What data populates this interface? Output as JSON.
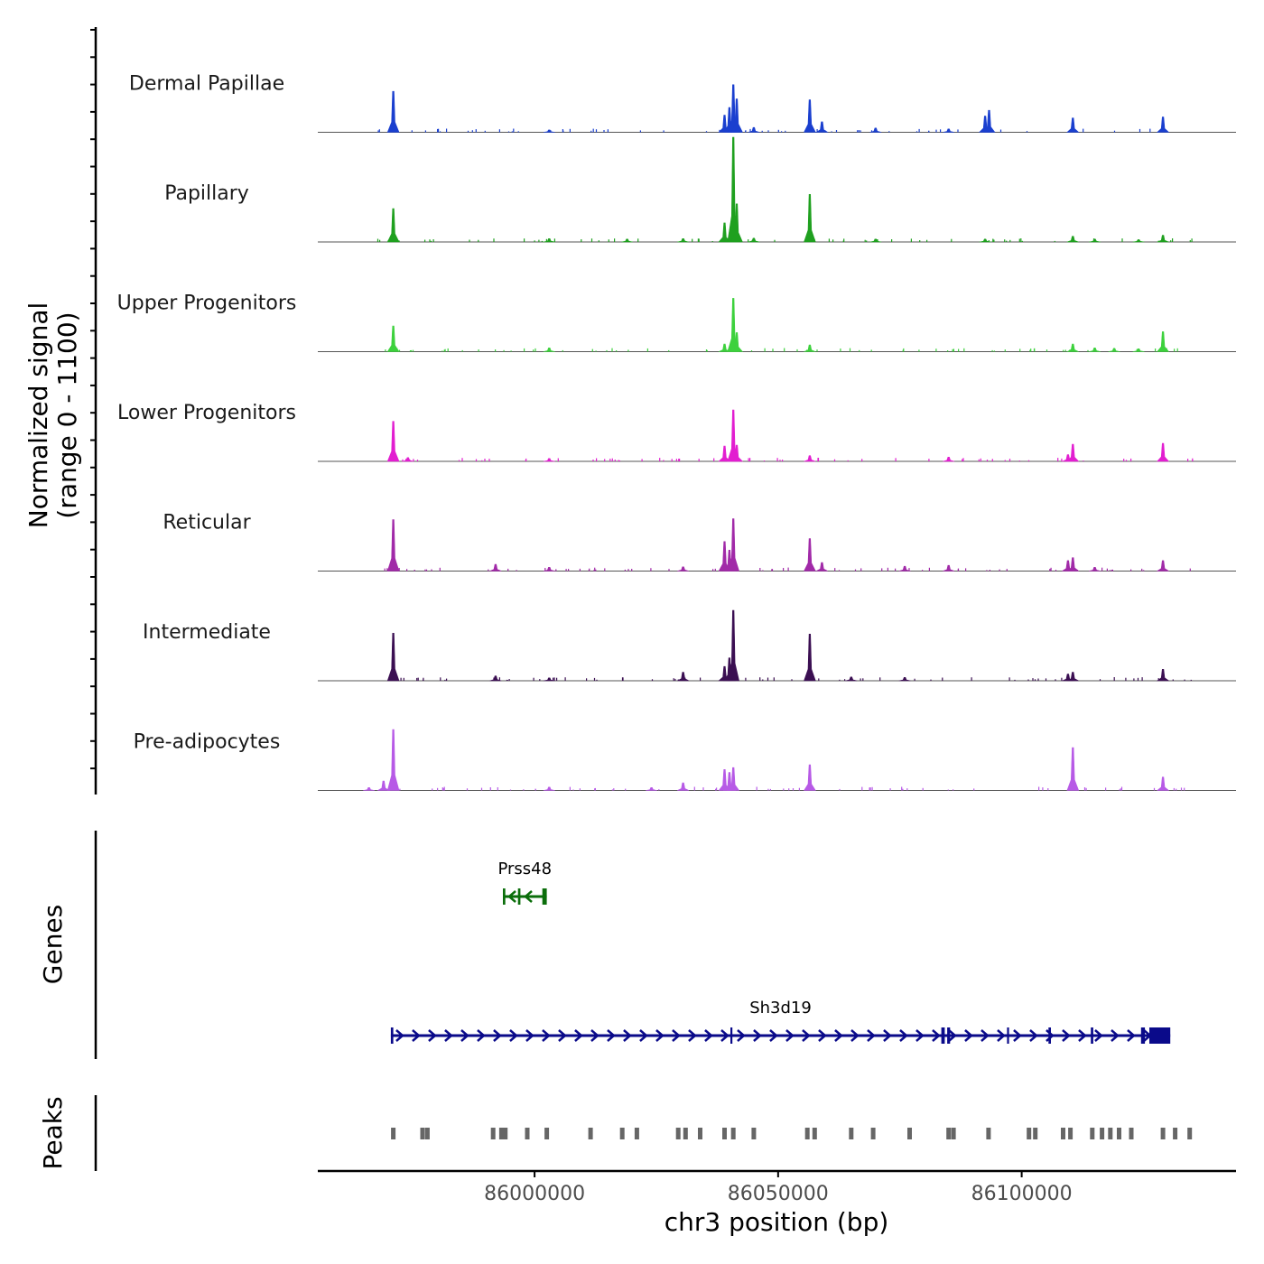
{
  "chart_data": {
    "type": "area",
    "title": "",
    "signal_axis": {
      "label_line1": "Normalized signal",
      "label_line2": "(range 0 - 1100)",
      "ylim": [
        0,
        1100
      ]
    },
    "genes_panel_label": "Genes",
    "peaks_panel_label": "Peaks",
    "x_axis": {
      "label": "chr3 position (bp)",
      "xlim": [
        85955500,
        86144000
      ],
      "ticks": [
        86000000,
        86050000,
        86100000
      ],
      "tick_labels": [
        "86000000",
        "86050000",
        "86100000"
      ]
    },
    "tracks": [
      {
        "name": "Dermal Papillae",
        "color": "#1a3fcf",
        "peaks": [
          {
            "x": 85971000,
            "h": 430
          },
          {
            "x": 86039000,
            "h": 180
          },
          {
            "x": 86040000,
            "h": 260
          },
          {
            "x": 86040800,
            "h": 500
          },
          {
            "x": 86041500,
            "h": 350
          },
          {
            "x": 86045000,
            "h": 50
          },
          {
            "x": 86056500,
            "h": 340
          },
          {
            "x": 86059000,
            "h": 110
          },
          {
            "x": 86070000,
            "h": 45
          },
          {
            "x": 86092500,
            "h": 170
          },
          {
            "x": 86093300,
            "h": 230
          },
          {
            "x": 86110500,
            "h": 150
          },
          {
            "x": 86129000,
            "h": 160
          },
          {
            "x": 86085000,
            "h": 35
          },
          {
            "x": 86003000,
            "h": 25
          }
        ]
      },
      {
        "name": "Papillary",
        "color": "#1fa01f",
        "peaks": [
          {
            "x": 85971000,
            "h": 350
          },
          {
            "x": 86039000,
            "h": 200
          },
          {
            "x": 86040800,
            "h": 1100
          },
          {
            "x": 86041500,
            "h": 400
          },
          {
            "x": 86056500,
            "h": 500
          },
          {
            "x": 86045000,
            "h": 40
          },
          {
            "x": 86003000,
            "h": 35
          },
          {
            "x": 86019000,
            "h": 30
          },
          {
            "x": 86030500,
            "h": 35
          },
          {
            "x": 86070000,
            "h": 30
          },
          {
            "x": 86092500,
            "h": 30
          },
          {
            "x": 86110500,
            "h": 60
          },
          {
            "x": 86115000,
            "h": 30
          },
          {
            "x": 86129000,
            "h": 70
          },
          {
            "x": 86124000,
            "h": 25
          }
        ]
      },
      {
        "name": "Upper Progenitors",
        "color": "#3dd13d",
        "peaks": [
          {
            "x": 85971000,
            "h": 270
          },
          {
            "x": 86039000,
            "h": 80
          },
          {
            "x": 86040800,
            "h": 560
          },
          {
            "x": 86041500,
            "h": 200
          },
          {
            "x": 86056500,
            "h": 70
          },
          {
            "x": 86003000,
            "h": 40
          },
          {
            "x": 86110500,
            "h": 80
          },
          {
            "x": 86115000,
            "h": 40
          },
          {
            "x": 86119000,
            "h": 35
          },
          {
            "x": 86129000,
            "h": 210
          },
          {
            "x": 86124000,
            "h": 30
          }
        ]
      },
      {
        "name": "Lower Progenitors",
        "color": "#e21ed0",
        "peaks": [
          {
            "x": 85971000,
            "h": 420
          },
          {
            "x": 86039000,
            "h": 160
          },
          {
            "x": 86040800,
            "h": 540
          },
          {
            "x": 86041500,
            "h": 170
          },
          {
            "x": 86056500,
            "h": 60
          },
          {
            "x": 86003000,
            "h": 30
          },
          {
            "x": 86085000,
            "h": 45
          },
          {
            "x": 86109500,
            "h": 70
          },
          {
            "x": 86110500,
            "h": 180
          },
          {
            "x": 86129000,
            "h": 190
          },
          {
            "x": 85974000,
            "h": 40
          }
        ]
      },
      {
        "name": "Reticular",
        "color": "#a12aa8",
        "peaks": [
          {
            "x": 85971000,
            "h": 540
          },
          {
            "x": 86039000,
            "h": 310
          },
          {
            "x": 86040000,
            "h": 220
          },
          {
            "x": 86040800,
            "h": 550
          },
          {
            "x": 86056500,
            "h": 340
          },
          {
            "x": 86059000,
            "h": 90
          },
          {
            "x": 85992000,
            "h": 70
          },
          {
            "x": 86003000,
            "h": 40
          },
          {
            "x": 86085000,
            "h": 60
          },
          {
            "x": 86109500,
            "h": 110
          },
          {
            "x": 86110500,
            "h": 140
          },
          {
            "x": 86129000,
            "h": 110
          },
          {
            "x": 86076000,
            "h": 50
          },
          {
            "x": 86115000,
            "h": 40
          },
          {
            "x": 86030500,
            "h": 45
          }
        ]
      },
      {
        "name": "Intermediate",
        "color": "#3b0f52",
        "peaks": [
          {
            "x": 85971000,
            "h": 500
          },
          {
            "x": 86039000,
            "h": 150
          },
          {
            "x": 86040000,
            "h": 240
          },
          {
            "x": 86040800,
            "h": 740
          },
          {
            "x": 86056500,
            "h": 490
          },
          {
            "x": 86030500,
            "h": 90
          },
          {
            "x": 85992000,
            "h": 50
          },
          {
            "x": 86003000,
            "h": 30
          },
          {
            "x": 86065000,
            "h": 40
          },
          {
            "x": 86109500,
            "h": 70
          },
          {
            "x": 86110500,
            "h": 90
          },
          {
            "x": 86129000,
            "h": 120
          },
          {
            "x": 86076000,
            "h": 35
          }
        ]
      },
      {
        "name": "Pre-adipocytes",
        "color": "#b75ae6",
        "peaks": [
          {
            "x": 85971000,
            "h": 640
          },
          {
            "x": 85969000,
            "h": 100
          },
          {
            "x": 86039000,
            "h": 220
          },
          {
            "x": 86040000,
            "h": 190
          },
          {
            "x": 86040800,
            "h": 240
          },
          {
            "x": 86056500,
            "h": 270
          },
          {
            "x": 86030500,
            "h": 80
          },
          {
            "x": 86110500,
            "h": 450
          },
          {
            "x": 86003000,
            "h": 35
          },
          {
            "x": 86129000,
            "h": 140
          },
          {
            "x": 86024000,
            "h": 30
          },
          {
            "x": 85966000,
            "h": 30
          }
        ]
      }
    ],
    "genes": [
      {
        "name": "Prss48",
        "strand": "-",
        "start": 85993500,
        "end": 86002500,
        "color": "#0b6e0b",
        "exons": [
          [
            85993500,
            85994000
          ],
          [
            85996600,
            85997100
          ],
          [
            86001600,
            86002500
          ]
        ]
      },
      {
        "name": "Sh3d19",
        "strand": "+",
        "start": 85970500,
        "end": 86130500,
        "color": "#0a0a8a",
        "exons": [
          [
            85970500,
            85971000
          ],
          [
            86040200,
            86040600
          ],
          [
            86083500,
            86084200
          ],
          [
            86084700,
            86085300
          ],
          [
            86097000,
            86097400
          ],
          [
            86105500,
            86106000
          ],
          [
            86114200,
            86114700
          ],
          [
            86124500,
            86125300
          ],
          [
            86126200,
            86130500
          ]
        ]
      }
    ],
    "peaks": [
      85971000,
      85977000,
      85978000,
      85991500,
      85993200,
      85994000,
      85998500,
      86002500,
      86011500,
      86018000,
      86021000,
      86029500,
      86031000,
      86034000,
      86039000,
      86040800,
      86045000,
      86056000,
      86057500,
      86065000,
      86069500,
      86077000,
      86085000,
      86086000,
      86093200,
      86101500,
      86102800,
      86108500,
      86110000,
      86114500,
      86116500,
      86118200,
      86120000,
      86122500,
      86129000,
      86131500,
      86134500
    ]
  }
}
